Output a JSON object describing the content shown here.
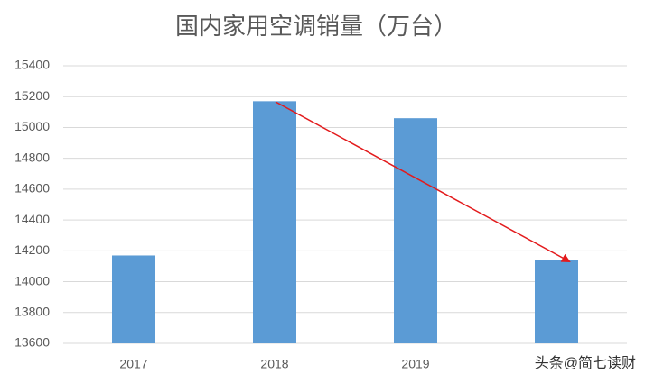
{
  "chart_data": {
    "type": "bar",
    "title": "国内家用空调销量（万台）",
    "categories": [
      "2017",
      "2018",
      "2019",
      null
    ],
    "values": [
      14170,
      15170,
      15060,
      14140
    ],
    "color": "#5b9bd5",
    "ylim": [
      13600,
      15400
    ],
    "yticks": [
      13600,
      13800,
      14000,
      14200,
      14400,
      14600,
      14800,
      15000,
      15200,
      15400
    ],
    "grid": true,
    "annotation": "头条@简七读财"
  }
}
